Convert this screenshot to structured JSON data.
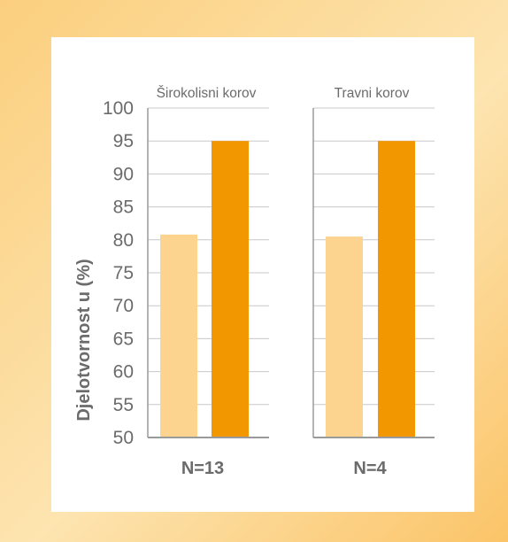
{
  "chart_data": {
    "type": "bar",
    "ylabel": "Djelotvornost u (%)",
    "ylim": [
      50,
      100
    ],
    "yticks": [
      100,
      95,
      90,
      85,
      80,
      75,
      70,
      65,
      60,
      55,
      50
    ],
    "grid": true,
    "groups": [
      {
        "title": "Širokolisni korov",
        "n_label": "N=13",
        "values": [
          80.8,
          95
        ]
      },
      {
        "title": "Travni korov",
        "n_label": "N=4",
        "values": [
          80.5,
          95
        ]
      }
    ],
    "colors": {
      "bar_light": "#fdd48f",
      "bar_dark": "#f39700",
      "axis": "#9a9a9a",
      "grid": "#c8c8c8",
      "text": "#6b6b6b"
    }
  }
}
